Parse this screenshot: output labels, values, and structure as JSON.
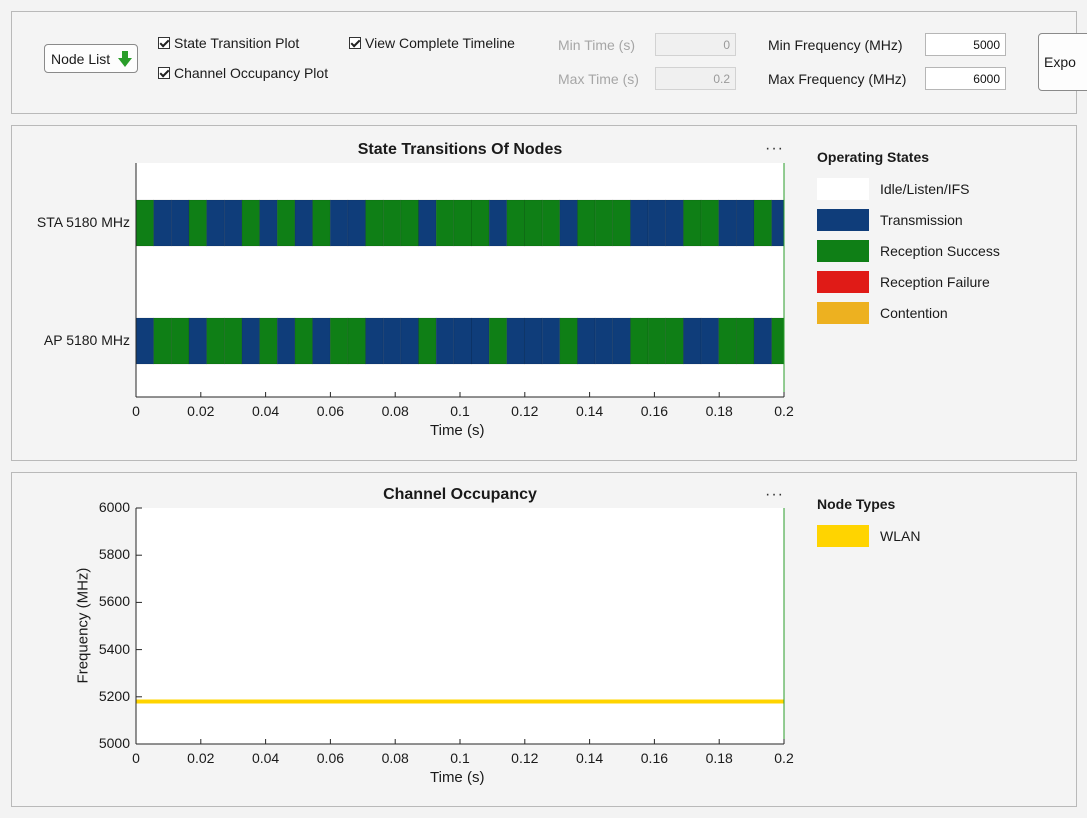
{
  "controls": {
    "node_list_label": "Node List",
    "checkboxes": [
      {
        "label": "State Transition Plot",
        "checked": true
      },
      {
        "label": "Channel Occupancy Plot",
        "checked": true
      },
      {
        "label": "View Complete Timeline",
        "checked": true
      }
    ],
    "min_time_label": "Min Time (s)",
    "min_time_value": "0",
    "max_time_label": "Max Time (s)",
    "max_time_value": "0.2",
    "min_freq_label": "Min Frequency (MHz)",
    "min_freq_value": "5000",
    "max_freq_label": "Max Frequency (MHz)",
    "max_freq_value": "6000",
    "export_label": "Expo"
  },
  "colors": {
    "idle": "#ffffff",
    "transmission": "#0f3d7a",
    "reception_success": "#0f7f16",
    "reception_failure": "#e01b17",
    "contention": "#edb120",
    "wlan": "#ffd400",
    "accent_green": "#2a9d2a"
  },
  "state_plot": {
    "title": "State Transitions Of Nodes",
    "xlabel": "Time (s)",
    "menu_label": "···",
    "legend_title": "Operating States",
    "legend": [
      {
        "label": "Idle/Listen/IFS",
        "color_key": "idle"
      },
      {
        "label": "Transmission",
        "color_key": "transmission"
      },
      {
        "label": "Reception Success",
        "color_key": "reception_success"
      },
      {
        "label": "Reception Failure",
        "color_key": "reception_failure"
      },
      {
        "label": "Contention",
        "color_key": "contention"
      }
    ]
  },
  "occupancy_plot": {
    "title": "Channel Occupancy",
    "xlabel": "Time (s)",
    "ylabel": "Frequency (MHz)",
    "menu_label": "···",
    "legend_title": "Node Types",
    "legend": [
      {
        "label": "WLAN",
        "color_key": "wlan"
      }
    ]
  },
  "chart_data": [
    {
      "type": "bar",
      "title": "State Transitions Of Nodes",
      "xlabel": "Time (s)",
      "ylabel": "",
      "xlim": [
        0,
        0.2
      ],
      "x_ticks": [
        "0",
        "0.02",
        "0.04",
        "0.06",
        "0.08",
        "0.1",
        "0.12",
        "0.14",
        "0.16",
        "0.18",
        "0.2"
      ],
      "categories": [
        "STA 5180 MHz",
        "AP 5180 MHz"
      ],
      "segment_width": 0.00545,
      "rows": [
        {
          "name": "STA 5180 MHz",
          "states": "RTTRTTRTRTRTTRRRTRRRTRRRTRRRTTTRRTTRTTR"
        },
        {
          "name": "AP 5180 MHz",
          "states": "TRRTRRTRTRTRRTTTRTTTRTTTRTTTRRRTTRRTRRT"
        }
      ],
      "state_codes": {
        "T": "Transmission",
        "R": "Reception Success"
      }
    },
    {
      "type": "line",
      "title": "Channel Occupancy",
      "xlabel": "Time (s)",
      "ylabel": "Frequency (MHz)",
      "xlim": [
        0,
        0.2
      ],
      "ylim": [
        5000,
        6000
      ],
      "x_ticks": [
        "0",
        "0.02",
        "0.04",
        "0.06",
        "0.08",
        "0.1",
        "0.12",
        "0.14",
        "0.16",
        "0.18",
        "0.2"
      ],
      "y_ticks": [
        "5000",
        "5200",
        "5400",
        "5600",
        "5800",
        "6000"
      ],
      "series": [
        {
          "name": "WLAN",
          "x": [
            0,
            0.2
          ],
          "y": [
            5180,
            5180
          ]
        }
      ]
    }
  ]
}
